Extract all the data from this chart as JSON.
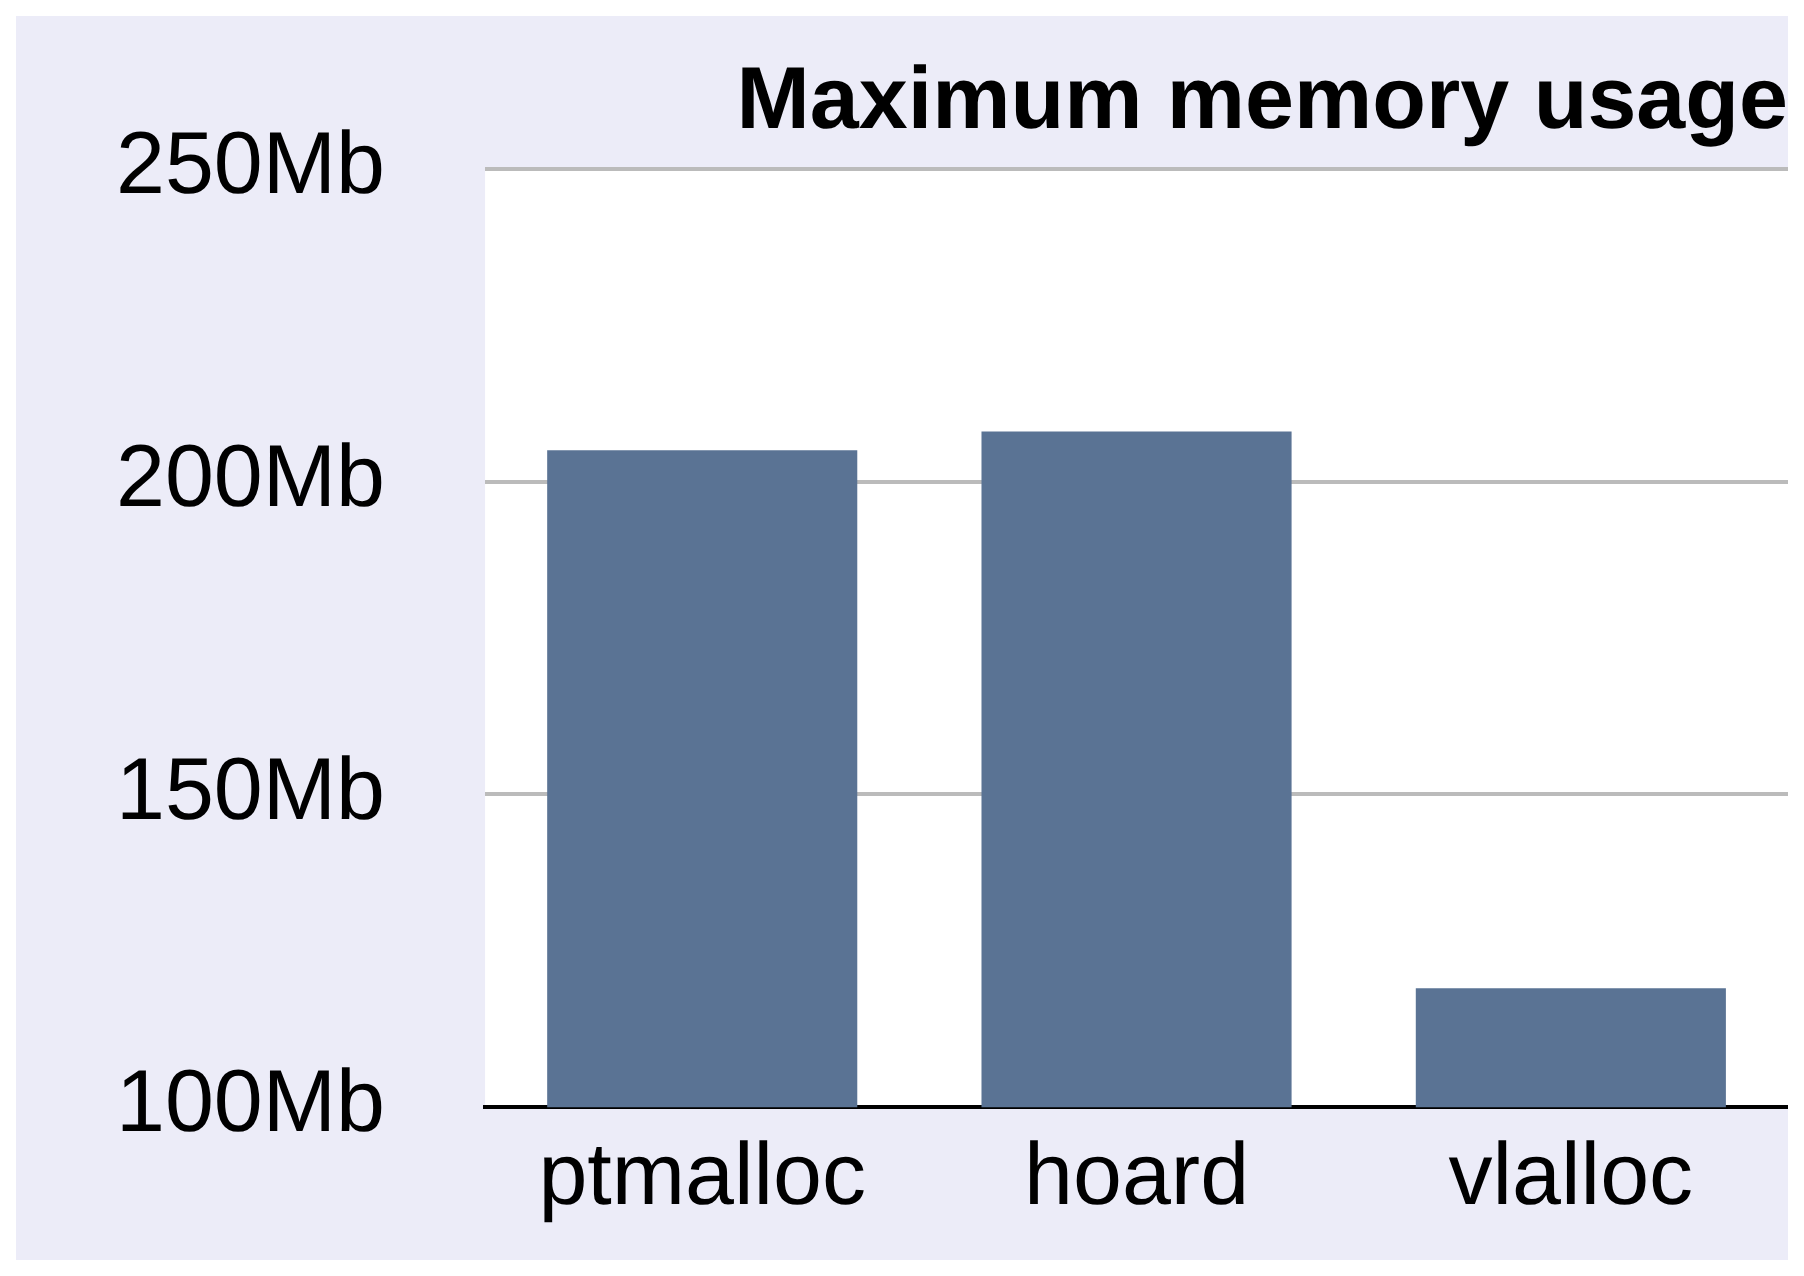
{
  "chart_data": {
    "type": "bar",
    "title": "Maximum memory usage",
    "categories": [
      "ptmalloc",
      "hoard",
      "vlalloc"
    ],
    "values": [
      205,
      208,
      119
    ],
    "color": "#5a7394",
    "ylim": [
      100,
      250
    ],
    "yticks": [
      {
        "value": 100,
        "label": "100Mb"
      },
      {
        "value": 150,
        "label": "150Mb"
      },
      {
        "value": 200,
        "label": "200Mb"
      },
      {
        "value": 250,
        "label": "250Mb"
      }
    ],
    "grid": "y",
    "legend": false
  }
}
